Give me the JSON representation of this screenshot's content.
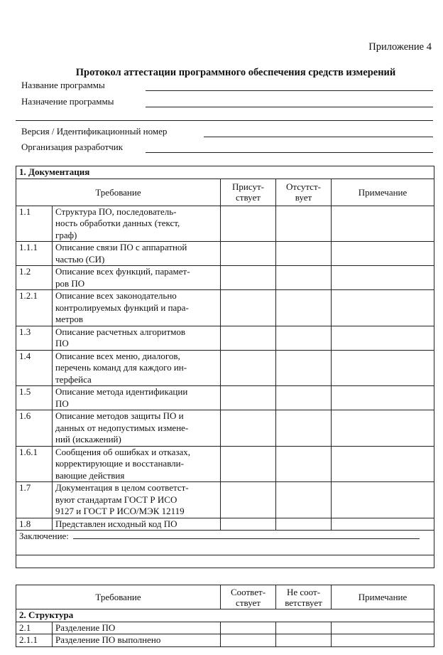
{
  "header": {
    "appendix": "Приложение 4",
    "title": "Протокол аттестации программного обеспечения средств измерений"
  },
  "fields": {
    "program_name": "Название программы",
    "program_purpose": "Назначение программы",
    "version": "Версия /  Идентификационный номер",
    "developer": "Организация разработчик"
  },
  "table1": {
    "section": "1. Документация",
    "columns": [
      "Требование",
      "Присут-\nствует",
      "Отсутст-\nвует",
      "Примечание"
    ],
    "rows": [
      {
        "num": "1.1",
        "text": "Структура ПО, последователь-\nность  обработки данных (текст,\nграф)"
      },
      {
        "num": "1.1.1",
        "text": "Описание связи ПО с аппаратной\nчастью (СИ)"
      },
      {
        "num": "1.2",
        "text": "Описание всех функций, парамет-\nров ПО"
      },
      {
        "num": "1.2.1",
        "text": "Описание всех законодательно\nконтролируемых функций и пара-\nметров"
      },
      {
        "num": "1.3",
        "text": "Описание расчетных алгоритмов\nПО"
      },
      {
        "num": "1.4",
        "text": "Описание всех меню, диалогов,\nперечень команд для каждого ин-\nтерфейса"
      },
      {
        "num": "1.5",
        "text": "Описание метода идентификации\nПО"
      },
      {
        "num": "1.6",
        "text": "Описание методов защиты ПО и\nданных от недопустимых измене-\nний (искажений)"
      },
      {
        "num": "1.6.1",
        "text": "Сообщения об ошибках и отказах,\nкорректирующие и восстанавли-\nвающие действия"
      },
      {
        "num": "1.7",
        "text": "Документация в целом соответст-\nвуют стандартам ГОСТ Р ИСО\n9127 и ГОСТ Р ИСО/МЭК 12119"
      },
      {
        "num": "1.8",
        "text": "Представлен исходный код ПО"
      }
    ],
    "conclusion": "Заключение:"
  },
  "table2": {
    "columns": [
      "Требование",
      "Соответ-\nствует",
      "Не соот-\nветствует",
      "Примечание"
    ],
    "section": "2. Структура",
    "rows": [
      {
        "num": "2.1",
        "text": "Разделение ПО"
      },
      {
        "num": "2.1.1",
        "text": "Разделение ПО выполнено"
      }
    ]
  }
}
